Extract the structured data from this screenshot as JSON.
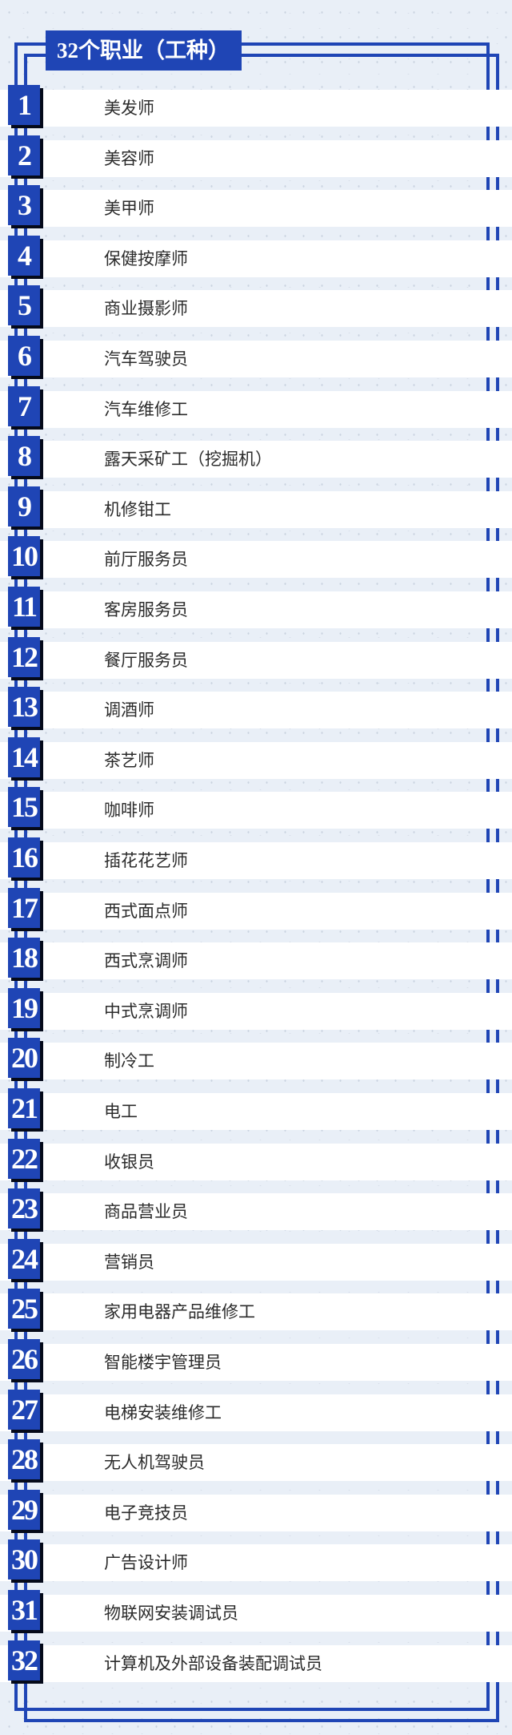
{
  "title": "32个职业（工种）",
  "colors": {
    "accent": "#1f45b5",
    "background": "#e9eff7"
  },
  "items": [
    {
      "number": "1",
      "label": "美发师"
    },
    {
      "number": "2",
      "label": "美容师"
    },
    {
      "number": "3",
      "label": "美甲师"
    },
    {
      "number": "4",
      "label": "保健按摩师"
    },
    {
      "number": "5",
      "label": "商业摄影师"
    },
    {
      "number": "6",
      "label": "汽车驾驶员"
    },
    {
      "number": "7",
      "label": "汽车维修工"
    },
    {
      "number": "8",
      "label": "露天采矿工（挖掘机）"
    },
    {
      "number": "9",
      "label": "机修钳工"
    },
    {
      "number": "10",
      "label": "前厅服务员"
    },
    {
      "number": "11",
      "label": "客房服务员"
    },
    {
      "number": "12",
      "label": "餐厅服务员"
    },
    {
      "number": "13",
      "label": "调酒师"
    },
    {
      "number": "14",
      "label": "茶艺师"
    },
    {
      "number": "15",
      "label": "咖啡师"
    },
    {
      "number": "16",
      "label": "插花花艺师"
    },
    {
      "number": "17",
      "label": "西式面点师"
    },
    {
      "number": "18",
      "label": "西式烹调师"
    },
    {
      "number": "19",
      "label": "中式烹调师"
    },
    {
      "number": "20",
      "label": "制冷工"
    },
    {
      "number": "21",
      "label": "电工"
    },
    {
      "number": "22",
      "label": "收银员"
    },
    {
      "number": "23",
      "label": "商品营业员"
    },
    {
      "number": "24",
      "label": "营销员"
    },
    {
      "number": "25",
      "label": "家用电器产品维修工"
    },
    {
      "number": "26",
      "label": "智能楼宇管理员"
    },
    {
      "number": "27",
      "label": "电梯安装维修工"
    },
    {
      "number": "28",
      "label": "无人机驾驶员"
    },
    {
      "number": "29",
      "label": "电子竞技员"
    },
    {
      "number": "30",
      "label": "广告设计师"
    },
    {
      "number": "31",
      "label": "物联网安装调试员"
    },
    {
      "number": "32",
      "label": "计算机及外部设备装配调试员"
    }
  ]
}
